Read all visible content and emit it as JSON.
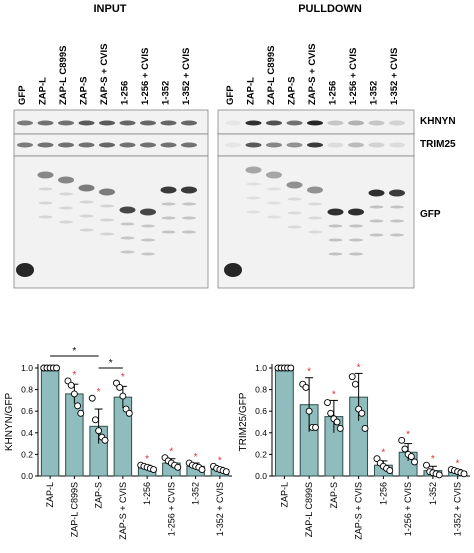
{
  "panels": {
    "input_title": "INPUT",
    "pulldown_title": "PULLDOWN"
  },
  "lanes": {
    "input": [
      "GFP",
      "ZAP-L",
      "ZAP-L C899S",
      "ZAP-S",
      "ZAP-S + CVIS",
      "1-256",
      "1-256 + CVIS",
      "1-352",
      "1-352 + CVIS"
    ],
    "pulldown": [
      "GFP",
      "ZAP-L",
      "ZAP-L C899S",
      "ZAP-S",
      "ZAP-S + CVIS",
      "1-256",
      "1-256 + CVIS",
      "1-352",
      "1-352 + CVIS"
    ]
  },
  "blot_labels": {
    "khnyn": "KHNYN",
    "trim25": "TRIM25",
    "gfp": "GFP"
  },
  "significance": {
    "star": "*"
  },
  "colors": {
    "bar_fill": "#8fbcbc",
    "bar_stroke": "#2f4f4f",
    "significance_red": "#e03030",
    "blot_background": "#f2f2f2",
    "band_dark": "#1a1a1a"
  },
  "chart_data": [
    {
      "type": "bar",
      "title": "",
      "xlabel": "",
      "ylabel": "KHNYN/GFP",
      "ylim": [
        0,
        1.0
      ],
      "yticks": [
        "0.0",
        "0.2",
        "0.4",
        "0.6",
        "0.8",
        "1.0"
      ],
      "categories": [
        "ZAP-L",
        "ZAP-L C899S",
        "ZAP-S",
        "ZAP-S + CVIS",
        "1-256",
        "1-256 + CVIS",
        "1-352",
        "1-352 + CVIS"
      ],
      "values": [
        1.0,
        0.76,
        0.46,
        0.73,
        0.08,
        0.12,
        0.09,
        0.06
      ],
      "errors": [
        0.0,
        0.09,
        0.16,
        0.1,
        0.02,
        0.04,
        0.03,
        0.02
      ],
      "points": [
        [
          1.0,
          1.0,
          1.0,
          1.0,
          1.0
        ],
        [
          0.88,
          0.84,
          0.76,
          0.65,
          0.58
        ],
        [
          0.72,
          0.52,
          0.42,
          0.36,
          0.33
        ],
        [
          0.86,
          0.82,
          0.74,
          0.62,
          0.58
        ],
        [
          0.1,
          0.09,
          0.08,
          0.07,
          0.06
        ],
        [
          0.17,
          0.14,
          0.12,
          0.1,
          0.08
        ],
        [
          0.12,
          0.1,
          0.09,
          0.08,
          0.06
        ],
        [
          0.09,
          0.07,
          0.06,
          0.05,
          0.04
        ]
      ],
      "significant": [
        false,
        true,
        true,
        true,
        true,
        true,
        true,
        true
      ],
      "brackets": [
        {
          "from": "ZAP-L",
          "to": "ZAP-S",
          "label": "*"
        },
        {
          "from": "ZAP-S",
          "to": "ZAP-S + CVIS",
          "label": "*"
        }
      ],
      "grid": false,
      "legend": "none"
    },
    {
      "type": "bar",
      "title": "",
      "xlabel": "",
      "ylabel": "TRIM25/GFP",
      "ylim": [
        0,
        1.0
      ],
      "yticks": [
        "0.0",
        "0.2",
        "0.4",
        "0.6",
        "0.8",
        "1.0"
      ],
      "categories": [
        "ZAP-L",
        "ZAP-L C899S",
        "ZAP-S",
        "ZAP-S + CVIS",
        "1-256",
        "1-256 + CVIS",
        "1-352",
        "1-352 + CVIS"
      ],
      "values": [
        1.0,
        0.66,
        0.55,
        0.73,
        0.1,
        0.22,
        0.05,
        0.04
      ],
      "errors": [
        0.0,
        0.25,
        0.15,
        0.22,
        0.04,
        0.08,
        0.04,
        0.02
      ],
      "points": [
        [
          1.0,
          1.0,
          1.0,
          1.0,
          1.0
        ],
        [
          0.85,
          0.82,
          0.6,
          0.45,
          0.45
        ],
        [
          0.68,
          0.58,
          0.53,
          0.5,
          0.44
        ],
        [
          0.92,
          0.85,
          0.62,
          0.58,
          0.44
        ],
        [
          0.16,
          0.12,
          0.09,
          0.07,
          0.05
        ],
        [
          0.33,
          0.25,
          0.2,
          0.18,
          0.13
        ],
        [
          0.1,
          0.04,
          0.03,
          0.02,
          0.01
        ],
        [
          0.06,
          0.05,
          0.04,
          0.03,
          0.02
        ]
      ],
      "significant": [
        false,
        true,
        true,
        true,
        true,
        true,
        true,
        true
      ],
      "brackets": [],
      "grid": false,
      "legend": "none"
    }
  ]
}
